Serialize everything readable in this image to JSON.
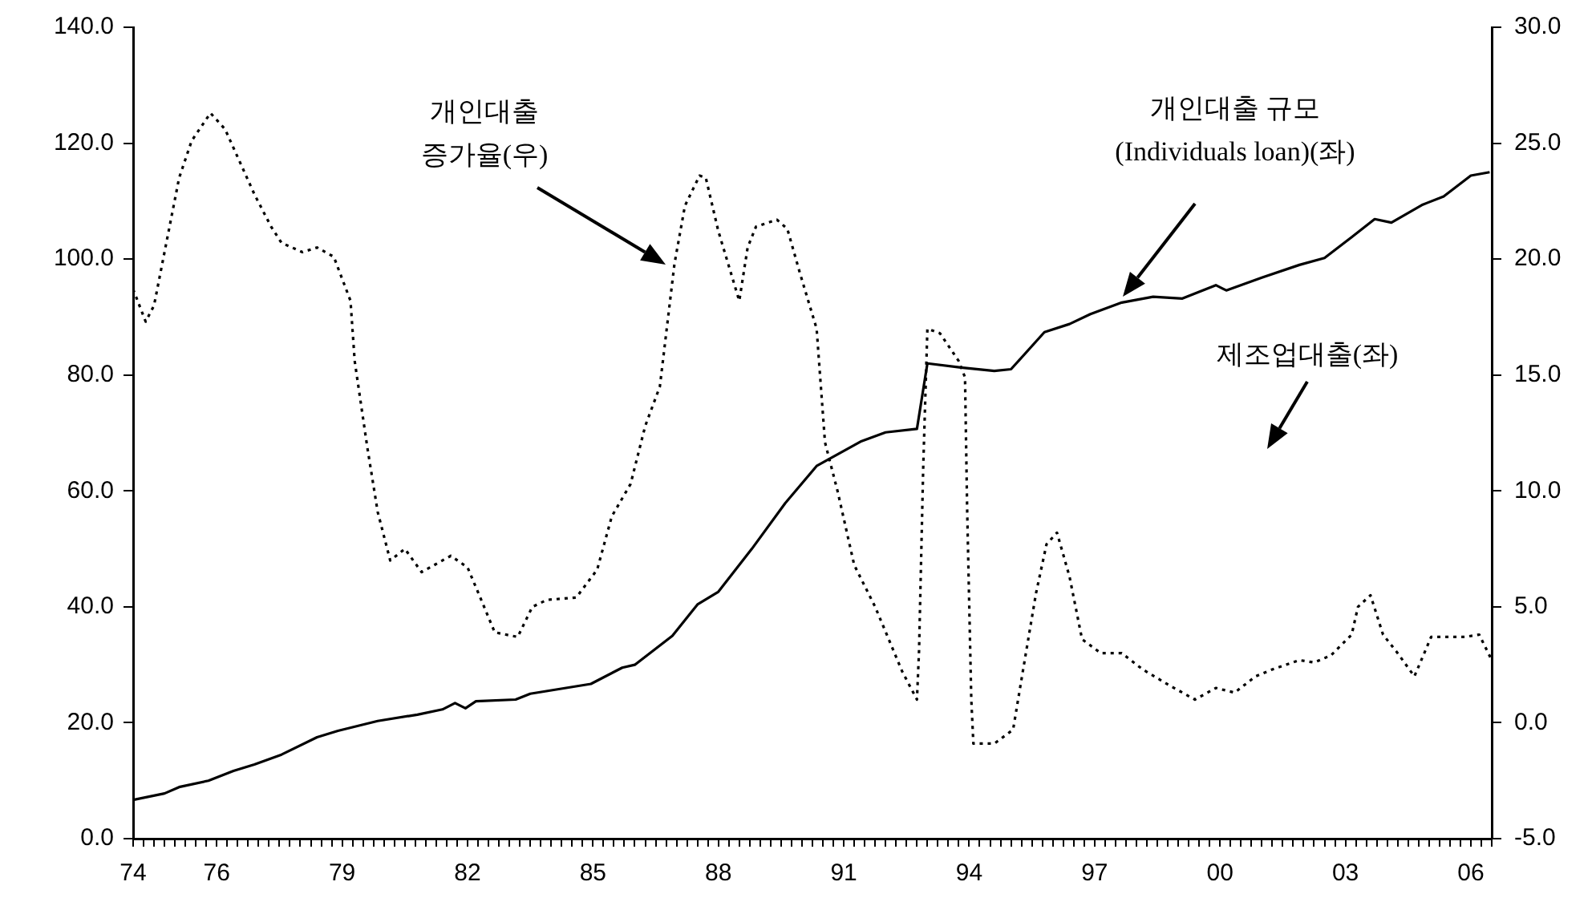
{
  "chart_data": {
    "type": "line",
    "grid": false,
    "marker": "none",
    "xlim": [
      1974,
      2006.5
    ],
    "xticks": [
      {
        "value": 1974,
        "label": "74"
      },
      {
        "value": 1974.25,
        "label": null
      },
      {
        "value": 1974.5,
        "label": null
      },
      {
        "value": 1974.75,
        "label": null
      },
      {
        "value": 1975,
        "label": null
      },
      {
        "value": 1975.25,
        "label": null
      },
      {
        "value": 1975.5,
        "label": null
      },
      {
        "value": 1975.75,
        "label": null
      },
      {
        "value": 1976,
        "label": "76"
      },
      {
        "value": 1976.25,
        "label": null
      },
      {
        "value": 1976.5,
        "label": null
      },
      {
        "value": 1976.75,
        "label": null
      },
      {
        "value": 1977,
        "label": null
      },
      {
        "value": 1977.25,
        "label": null
      },
      {
        "value": 1977.5,
        "label": null
      },
      {
        "value": 1977.75,
        "label": null
      },
      {
        "value": 1978,
        "label": null
      },
      {
        "value": 1978.25,
        "label": null
      },
      {
        "value": 1978.5,
        "label": null
      },
      {
        "value": 1978.75,
        "label": null
      },
      {
        "value": 1979,
        "label": "79"
      },
      {
        "value": 1979.25,
        "label": null
      },
      {
        "value": 1979.5,
        "label": null
      },
      {
        "value": 1979.75,
        "label": null
      },
      {
        "value": 1980,
        "label": null
      },
      {
        "value": 1980.25,
        "label": null
      },
      {
        "value": 1980.5,
        "label": null
      },
      {
        "value": 1980.75,
        "label": null
      },
      {
        "value": 1981,
        "label": null
      },
      {
        "value": 1981.25,
        "label": null
      },
      {
        "value": 1981.5,
        "label": null
      },
      {
        "value": 1981.75,
        "label": null
      },
      {
        "value": 1982,
        "label": "82"
      },
      {
        "value": 1982.25,
        "label": null
      },
      {
        "value": 1982.5,
        "label": null
      },
      {
        "value": 1982.75,
        "label": null
      },
      {
        "value": 1983,
        "label": null
      },
      {
        "value": 1983.25,
        "label": null
      },
      {
        "value": 1983.5,
        "label": null
      },
      {
        "value": 1983.75,
        "label": null
      },
      {
        "value": 1984,
        "label": null
      },
      {
        "value": 1984.25,
        "label": null
      },
      {
        "value": 1984.5,
        "label": null
      },
      {
        "value": 1984.75,
        "label": null
      },
      {
        "value": 1985,
        "label": "85"
      },
      {
        "value": 1985.25,
        "label": null
      },
      {
        "value": 1985.5,
        "label": null
      },
      {
        "value": 1985.75,
        "label": null
      },
      {
        "value": 1986,
        "label": null
      },
      {
        "value": 1986.25,
        "label": null
      },
      {
        "value": 1986.5,
        "label": null
      },
      {
        "value": 1986.75,
        "label": null
      },
      {
        "value": 1987,
        "label": null
      },
      {
        "value": 1987.25,
        "label": null
      },
      {
        "value": 1987.5,
        "label": null
      },
      {
        "value": 1987.75,
        "label": null
      },
      {
        "value": 1988,
        "label": "88"
      },
      {
        "value": 1988.25,
        "label": null
      },
      {
        "value": 1988.5,
        "label": null
      },
      {
        "value": 1988.75,
        "label": null
      },
      {
        "value": 1989,
        "label": null
      },
      {
        "value": 1989.25,
        "label": null
      },
      {
        "value": 1989.5,
        "label": null
      },
      {
        "value": 1989.75,
        "label": null
      },
      {
        "value": 1990,
        "label": null
      },
      {
        "value": 1990.25,
        "label": null
      },
      {
        "value": 1990.5,
        "label": null
      },
      {
        "value": 1990.75,
        "label": null
      },
      {
        "value": 1991,
        "label": "91"
      },
      {
        "value": 1991.25,
        "label": null
      },
      {
        "value": 1991.5,
        "label": null
      },
      {
        "value": 1991.75,
        "label": null
      },
      {
        "value": 1992,
        "label": null
      },
      {
        "value": 1992.25,
        "label": null
      },
      {
        "value": 1992.5,
        "label": null
      },
      {
        "value": 1992.75,
        "label": null
      },
      {
        "value": 1993,
        "label": null
      },
      {
        "value": 1993.25,
        "label": null
      },
      {
        "value": 1993.5,
        "label": null
      },
      {
        "value": 1993.75,
        "label": null
      },
      {
        "value": 1994,
        "label": "94"
      },
      {
        "value": 1994.25,
        "label": null
      },
      {
        "value": 1994.5,
        "label": null
      },
      {
        "value": 1994.75,
        "label": null
      },
      {
        "value": 1995,
        "label": null
      },
      {
        "value": 1995.25,
        "label": null
      },
      {
        "value": 1995.5,
        "label": null
      },
      {
        "value": 1995.75,
        "label": null
      },
      {
        "value": 1996,
        "label": null
      },
      {
        "value": 1996.25,
        "label": null
      },
      {
        "value": 1996.5,
        "label": null
      },
      {
        "value": 1996.75,
        "label": null
      },
      {
        "value": 1997,
        "label": "97"
      },
      {
        "value": 1997.25,
        "label": null
      },
      {
        "value": 1997.5,
        "label": null
      },
      {
        "value": 1997.75,
        "label": null
      },
      {
        "value": 1998,
        "label": null
      },
      {
        "value": 1998.25,
        "label": null
      },
      {
        "value": 1998.5,
        "label": null
      },
      {
        "value": 1998.75,
        "label": null
      },
      {
        "value": 1999,
        "label": null
      },
      {
        "value": 1999.25,
        "label": null
      },
      {
        "value": 1999.5,
        "label": null
      },
      {
        "value": 1999.75,
        "label": null
      },
      {
        "value": 2000,
        "label": "00"
      },
      {
        "value": 2000.25,
        "label": null
      },
      {
        "value": 2000.5,
        "label": null
      },
      {
        "value": 2000.75,
        "label": null
      },
      {
        "value": 2001,
        "label": null
      },
      {
        "value": 2001.25,
        "label": null
      },
      {
        "value": 2001.5,
        "label": null
      },
      {
        "value": 2001.75,
        "label": null
      },
      {
        "value": 2002,
        "label": null
      },
      {
        "value": 2002.25,
        "label": null
      },
      {
        "value": 2002.5,
        "label": null
      },
      {
        "value": 2002.75,
        "label": null
      },
      {
        "value": 2003,
        "label": "03"
      },
      {
        "value": 2003.25,
        "label": null
      },
      {
        "value": 2003.5,
        "label": null
      },
      {
        "value": 2003.75,
        "label": null
      },
      {
        "value": 2004,
        "label": null
      },
      {
        "value": 2004.25,
        "label": null
      },
      {
        "value": 2004.5,
        "label": null
      },
      {
        "value": 2004.75,
        "label": null
      },
      {
        "value": 2005,
        "label": null
      },
      {
        "value": 2005.25,
        "label": null
      },
      {
        "value": 2005.5,
        "label": null
      },
      {
        "value": 2005.75,
        "label": null
      },
      {
        "value": 2006,
        "label": "06"
      },
      {
        "value": 2006.25,
        "label": null
      },
      {
        "value": 2006.5,
        "label": null
      }
    ],
    "ylim": [
      0,
      140
    ],
    "yticks": [
      {
        "value": 0,
        "label": "0.0"
      },
      {
        "value": 20,
        "label": "20.0"
      },
      {
        "value": 40,
        "label": "40.0"
      },
      {
        "value": 60,
        "label": "60.0"
      },
      {
        "value": 80,
        "label": "80.0"
      },
      {
        "value": 100,
        "label": "100.0"
      },
      {
        "value": 120,
        "label": "120.0"
      },
      {
        "value": 140,
        "label": "140.0"
      }
    ],
    "y2lim": [
      -5,
      30
    ],
    "y2ticks": [
      {
        "value": -5,
        "label": "-5.0"
      },
      {
        "value": 0,
        "label": "0.0"
      },
      {
        "value": 5,
        "label": "5.0"
      },
      {
        "value": 10,
        "label": "10.0"
      },
      {
        "value": 15,
        "label": "15.0"
      },
      {
        "value": 20,
        "label": "20.0"
      },
      {
        "value": 25,
        "label": "25.0"
      },
      {
        "value": 30,
        "label": "30.0"
      }
    ],
    "series": [
      {
        "color": "#000000",
        "line_style": "solid",
        "x": [
          1974,
          1974.75,
          1975.1,
          1975.8,
          1976.4,
          1976.9,
          1977.55,
          1978.4,
          1978.9,
          1979.85,
          1980.8,
          1981.4,
          1981.7,
          1981.95,
          1982.2,
          1983.15,
          1983.5,
          1984.95,
          1985.7,
          1986,
          1986.9,
          1987.5,
          1988,
          1988.8,
          1989.6,
          1990.35,
          1991.4,
          1992,
          1992.75,
          1993,
          1993.8,
          1994.6,
          1995,
          1995.8,
          1996.4,
          1996.9,
          1997.65,
          1998.4,
          1999.1,
          1999.9,
          2000.15,
          2001,
          2001.9,
          2002.5,
          2003.15,
          2003.7,
          2004.1,
          2004.85,
          2005.35,
          2006,
          2006.45
        ],
        "values": [
          6.7,
          7.8,
          8.9,
          10,
          11.7,
          12.8,
          14.5,
          17.5,
          18.6,
          20.3,
          21.4,
          22.3,
          23.4,
          22.5,
          23.7,
          24,
          25,
          26.7,
          29.5,
          30,
          35,
          40.4,
          42.6,
          50,
          57.9,
          64.3,
          68.5,
          70.1,
          70.7,
          82,
          81.3,
          80.7,
          81,
          87.4,
          88.8,
          90.5,
          92.5,
          93.5,
          93.2,
          95.5,
          94.6,
          96.8,
          99,
          100.2,
          103.8,
          106.9,
          106.3,
          109.4,
          110.8,
          114.4,
          115
        ]
      },
      {
        "color": "#000000",
        "line_style": "dotted",
        "axis": "y2",
        "x": [
          1974,
          1974.3,
          1974.5,
          1975.1,
          1975.4,
          1975.85,
          1976.2,
          1976.9,
          1977.3,
          1977.55,
          1978.05,
          1978.4,
          1978.8,
          1979.2,
          1979.3,
          1979.6,
          1979.85,
          1980.15,
          1980.5,
          1980.9,
          1981.6,
          1982,
          1982.35,
          1982.65,
          1983.2,
          1983.55,
          1983.9,
          1984.6,
          1985.1,
          1985.45,
          1985.9,
          1986.25,
          1986.6,
          1986.95,
          1987.2,
          1987.55,
          1987.7,
          1988,
          1988.5,
          1988.7,
          1988.9,
          1989.4,
          1989.65,
          1989.95,
          1990.35,
          1990.55,
          1990.85,
          1991.25,
          1991.75,
          1992.4,
          1992.75,
          1992.8,
          1992.9,
          1993,
          1993.3,
          1993.75,
          1993.9,
          1993.95,
          1994.05,
          1994.1,
          1994.6,
          1995.05,
          1995.3,
          1995.6,
          1995.85,
          1996.1,
          1996.4,
          1996.7,
          1997.15,
          1997.65,
          1998.15,
          1998.8,
          1999.4,
          1999.9,
          2000.35,
          2000.85,
          2001.25,
          2001.9,
          2002.25,
          2002.65,
          2003.15,
          2003.3,
          2003.6,
          2003.9,
          2004.25,
          2004.65,
          2005.05,
          2005.85,
          2006.2,
          2006.5
        ],
        "values": [
          18.7,
          17.3,
          18,
          23.5,
          25.1,
          26.3,
          25.6,
          22.8,
          21.4,
          20.7,
          20.3,
          20.5,
          20.1,
          18.2,
          15.6,
          11.9,
          9.1,
          7,
          7.5,
          6.5,
          7.2,
          6.7,
          5.2,
          3.9,
          3.7,
          5,
          5.3,
          5.4,
          6.6,
          8.9,
          10.3,
          12.8,
          14.5,
          19.8,
          22.3,
          23.6,
          23.5,
          21.2,
          18.2,
          20.5,
          21.4,
          21.7,
          21.3,
          19.4,
          17,
          12.1,
          10,
          6.8,
          5,
          2.2,
          1,
          3.1,
          11,
          17,
          16.8,
          15.6,
          14.9,
          9.3,
          1,
          -0.9,
          -0.9,
          -0.3,
          2.4,
          5.6,
          7.7,
          8.2,
          6.3,
          3.6,
          3,
          3,
          2.3,
          1.6,
          1,
          1.5,
          1.3,
          2,
          2.3,
          2.7,
          2.6,
          2.9,
          3.8,
          5,
          5.5,
          3.8,
          3,
          2,
          3.7,
          3.7,
          3.8,
          2.7
        ]
      }
    ],
    "annotations": [
      "개인대출\n증가율(우)",
      "개인대출 규모\n(Individuals loan)(좌)",
      "제조업대출(좌)"
    ]
  }
}
